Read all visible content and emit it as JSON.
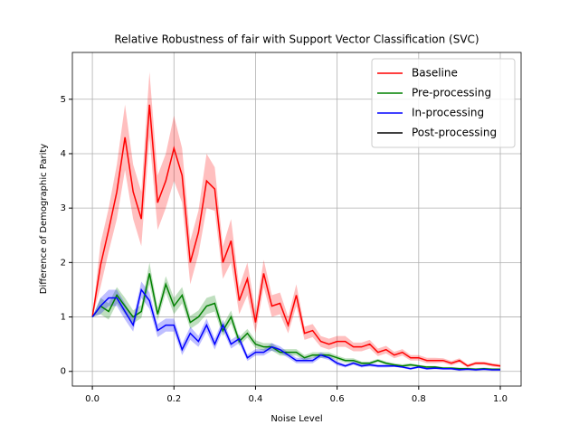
{
  "chart_data": {
    "type": "line",
    "title": "Relative Robustness of fair with Support Vector Classification (SVC)",
    "x_label": "Noise Level",
    "y_label": "Difference of Demographic Parity",
    "x": [
      0,
      0.02,
      0.04,
      0.06,
      0.08,
      0.1,
      0.12,
      0.14,
      0.16,
      0.18,
      0.2,
      0.22,
      0.24,
      0.26,
      0.28,
      0.3,
      0.32,
      0.34,
      0.36,
      0.38,
      0.4,
      0.42,
      0.44,
      0.46,
      0.48,
      0.5,
      0.52,
      0.54,
      0.56,
      0.58,
      0.6,
      0.62,
      0.64,
      0.66,
      0.68,
      0.7,
      0.72,
      0.74,
      0.76,
      0.78,
      0.8,
      0.82,
      0.84,
      0.86,
      0.88,
      0.9,
      0.92,
      0.94,
      0.96,
      0.98,
      1
    ],
    "series": [
      {
        "name": "Baseline",
        "color": "#ff0000",
        "values": [
          1.0,
          1.95,
          2.6,
          3.3,
          4.3,
          3.3,
          2.8,
          4.9,
          3.1,
          3.5,
          4.1,
          3.6,
          2.0,
          2.55,
          3.5,
          3.35,
          2.0,
          2.4,
          1.3,
          1.7,
          0.9,
          1.8,
          1.2,
          1.25,
          0.85,
          1.4,
          0.7,
          0.75,
          0.55,
          0.5,
          0.55,
          0.55,
          0.45,
          0.45,
          0.5,
          0.35,
          0.4,
          0.3,
          0.35,
          0.25,
          0.25,
          0.2,
          0.2,
          0.2,
          0.15,
          0.2,
          0.1,
          0.15,
          0.15,
          0.12,
          0.1
        ],
        "errors": [
          0,
          0.4,
          0.4,
          0.5,
          0.6,
          0.5,
          0.5,
          0.6,
          0.5,
          0.5,
          0.6,
          0.5,
          0.4,
          0.4,
          0.5,
          0.4,
          0.3,
          0.4,
          0.25,
          0.3,
          0.2,
          0.25,
          0.2,
          0.2,
          0.15,
          0.2,
          0.12,
          0.12,
          0.1,
          0.1,
          0.1,
          0.1,
          0.08,
          0.08,
          0.08,
          0.07,
          0.07,
          0.06,
          0.06,
          0.05,
          0.05,
          0.05,
          0.05,
          0.04,
          0.04,
          0.04,
          0.03,
          0.03,
          0.03,
          0.03,
          0.03
        ]
      },
      {
        "name": "Pre-processing",
        "color": "#008000",
        "values": [
          1.0,
          1.2,
          1.1,
          1.4,
          1.2,
          1.0,
          1.1,
          1.8,
          1.05,
          1.6,
          1.2,
          1.4,
          0.9,
          1.0,
          1.2,
          1.25,
          0.75,
          1.0,
          0.55,
          0.7,
          0.5,
          0.45,
          0.45,
          0.35,
          0.35,
          0.35,
          0.25,
          0.3,
          0.3,
          0.3,
          0.25,
          0.2,
          0.2,
          0.15,
          0.15,
          0.2,
          0.15,
          0.12,
          0.1,
          0.12,
          0.1,
          0.08,
          0.08,
          0.06,
          0.06,
          0.05,
          0.05,
          0.04,
          0.05,
          0.04,
          0.04
        ],
        "errors": [
          0,
          0.15,
          0.15,
          0.15,
          0.15,
          0.12,
          0.12,
          0.2,
          0.12,
          0.15,
          0.15,
          0.15,
          0.12,
          0.12,
          0.15,
          0.15,
          0.1,
          0.12,
          0.08,
          0.08,
          0.07,
          0.07,
          0.07,
          0.06,
          0.06,
          0.06,
          0.05,
          0.05,
          0.05,
          0.05,
          0.04,
          0.04,
          0.04,
          0.03,
          0.03,
          0.03,
          0.03,
          0.03,
          0.03,
          0.03,
          0.02,
          0.02,
          0.02,
          0.02,
          0.02,
          0.02,
          0.02,
          0.02,
          0.02,
          0.02,
          0.02
        ]
      },
      {
        "name": "In-processing",
        "color": "#0000ff",
        "values": [
          1.0,
          1.2,
          1.35,
          1.35,
          1.1,
          0.85,
          1.5,
          1.3,
          0.75,
          0.85,
          0.85,
          0.4,
          0.7,
          0.55,
          0.85,
          0.5,
          0.85,
          0.5,
          0.6,
          0.25,
          0.35,
          0.35,
          0.45,
          0.4,
          0.3,
          0.2,
          0.2,
          0.2,
          0.3,
          0.25,
          0.15,
          0.1,
          0.15,
          0.1,
          0.12,
          0.1,
          0.1,
          0.1,
          0.08,
          0.05,
          0.08,
          0.05,
          0.06,
          0.05,
          0.05,
          0.03,
          0.04,
          0.03,
          0.04,
          0.03,
          0.03
        ],
        "errors": [
          0,
          0.15,
          0.15,
          0.15,
          0.15,
          0.12,
          0.15,
          0.15,
          0.12,
          0.12,
          0.12,
          0.1,
          0.12,
          0.1,
          0.12,
          0.1,
          0.1,
          0.08,
          0.08,
          0.06,
          0.06,
          0.06,
          0.07,
          0.06,
          0.05,
          0.05,
          0.05,
          0.05,
          0.05,
          0.04,
          0.04,
          0.03,
          0.03,
          0.03,
          0.03,
          0.03,
          0.03,
          0.02,
          0.02,
          0.02,
          0.02,
          0.02,
          0.02,
          0.02,
          0.02,
          0.02,
          0.02,
          0.02,
          0.02,
          0.02,
          0.02
        ]
      },
      {
        "name": "Post-processing",
        "color": "#000000",
        "values": [
          null,
          null,
          null,
          null,
          null,
          null,
          null,
          null,
          null,
          null,
          null,
          null,
          null,
          null,
          null,
          null,
          null,
          null,
          null,
          null,
          null,
          null,
          null,
          null,
          null,
          null,
          null,
          null,
          null,
          null,
          null,
          null,
          null,
          null,
          null,
          null,
          null,
          null,
          null,
          null,
          null,
          null,
          null,
          null,
          null,
          null,
          null,
          null,
          null,
          null,
          null
        ]
      }
    ],
    "xlim": [
      -0.049,
      1.051
    ],
    "ylim": [
      -0.27,
      5.86
    ],
    "xticks": [
      {
        "value": 0,
        "label": "0.0"
      },
      0.2,
      0.4,
      0.6,
      0.8,
      {
        "value": 1,
        "label": "1.0"
      }
    ],
    "yticks": [
      0,
      1,
      2,
      3,
      4,
      5
    ],
    "grid": true,
    "legend": "upper-right",
    "band_opacity": 0.25
  }
}
